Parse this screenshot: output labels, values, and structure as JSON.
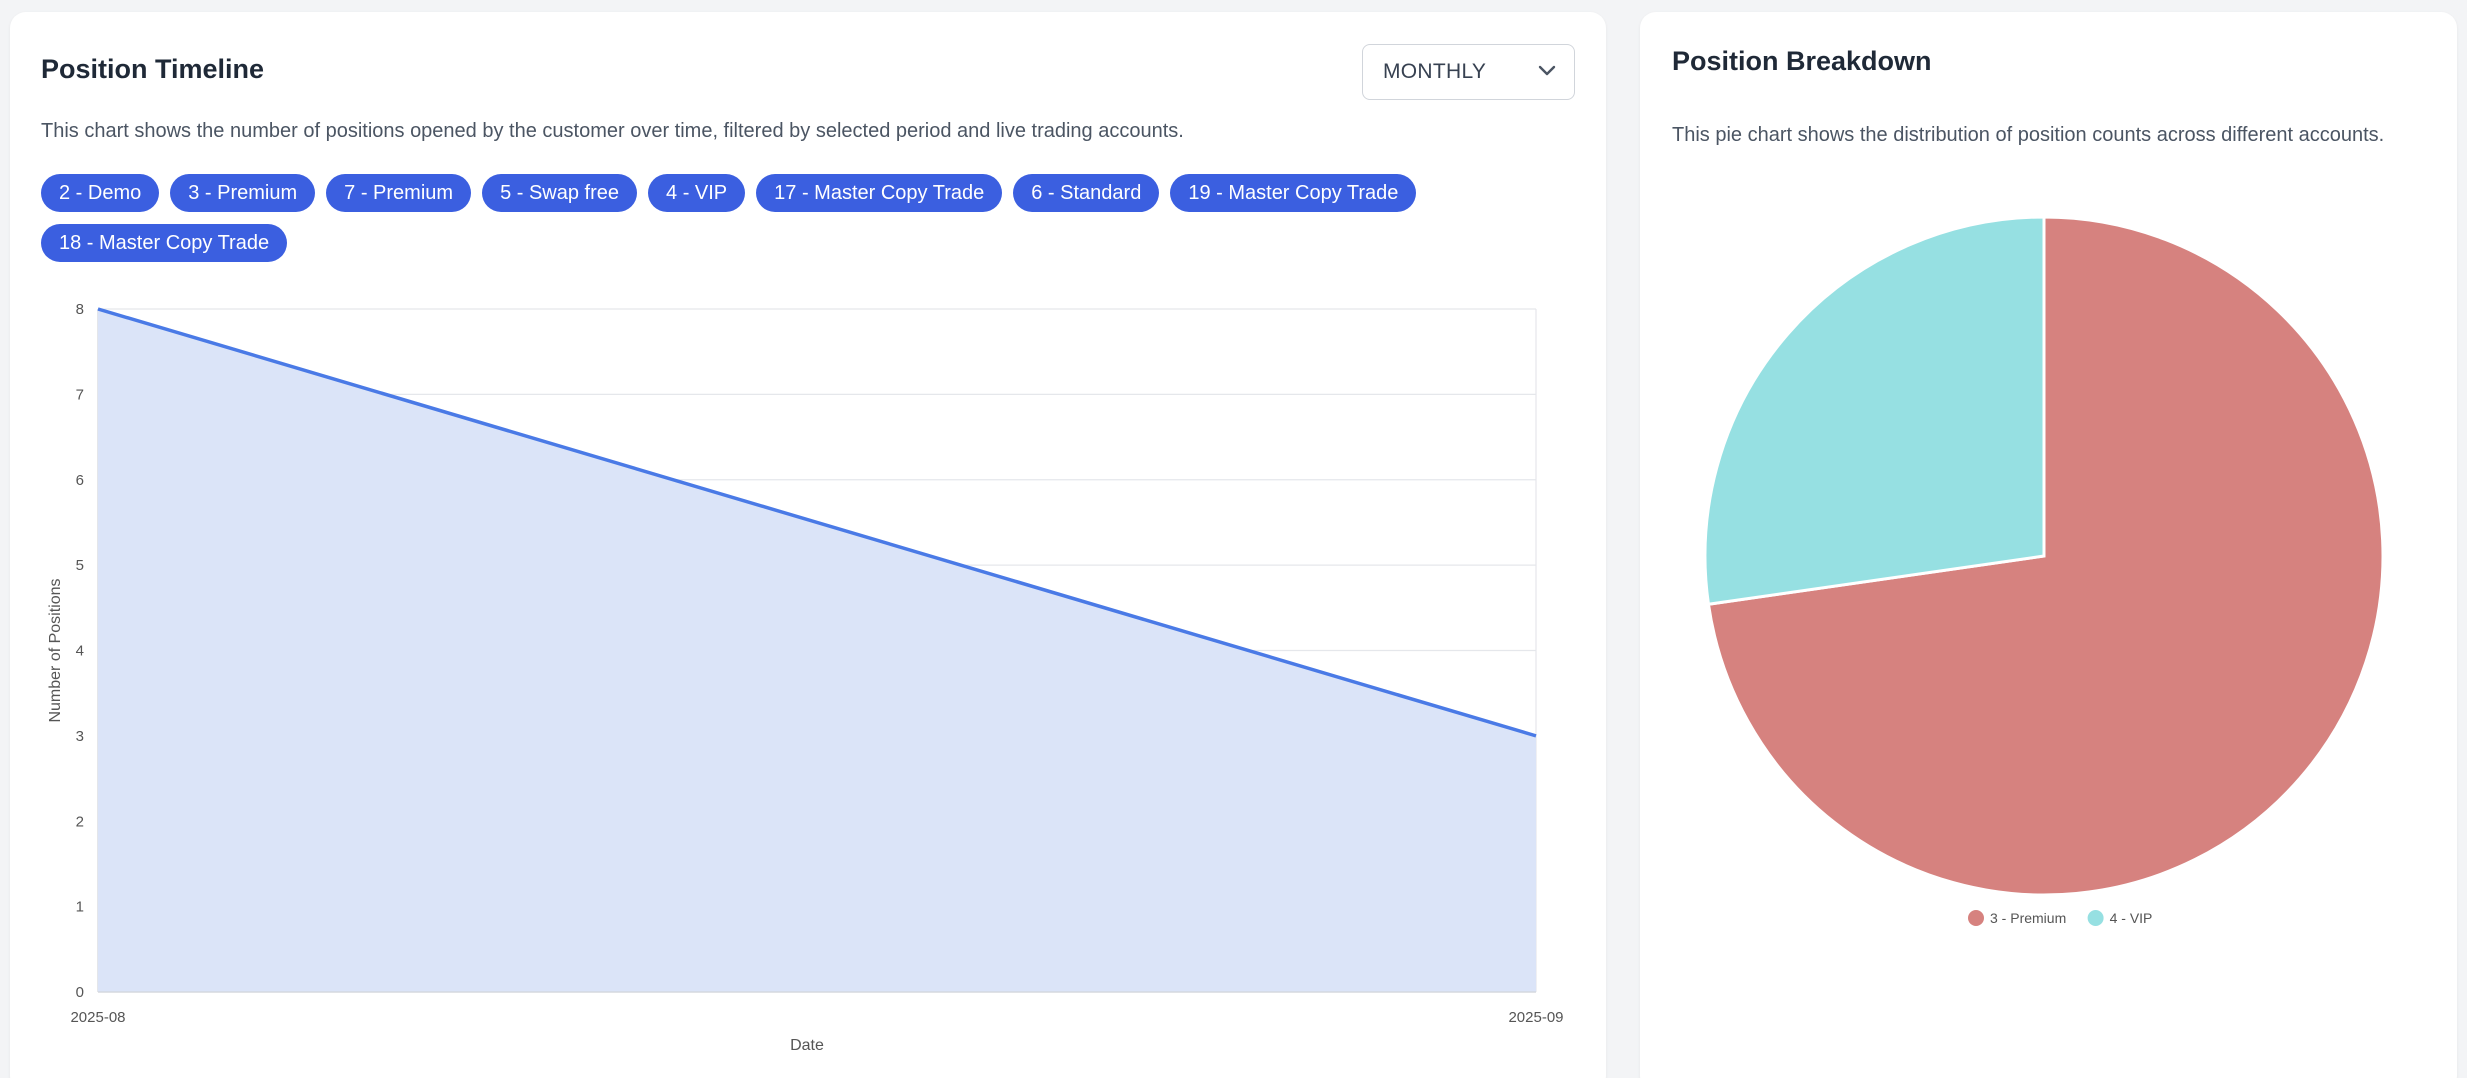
{
  "timeline": {
    "title": "Position Timeline",
    "description": "This chart shows the number of positions opened by the customer over time, filtered by selected period and live trading accounts.",
    "period_select": {
      "value": "MONTHLY"
    },
    "accounts": [
      "2 - Demo",
      "3 - Premium",
      "7 - Premium",
      "5 - Swap free",
      "4 - VIP",
      "17 - Master Copy Trade",
      "6 - Standard",
      "19 - Master Copy Trade",
      "18 - Master Copy Trade"
    ]
  },
  "breakdown": {
    "title": "Position Breakdown",
    "description": "This pie chart shows the distribution of position counts across different accounts."
  },
  "colors": {
    "badge": "#3b5fe0",
    "line": "#4a7ae6",
    "area": "#dbe4f8",
    "premium": "#d6827f",
    "vip": "#96e0e2"
  },
  "chart_data": [
    {
      "type": "area",
      "x": [
        "2025-08",
        "2025-09"
      ],
      "series": [
        {
          "values": [
            8,
            3
          ]
        }
      ],
      "xlabel": "Date",
      "ylabel": "Number of Positions",
      "ylim": [
        0,
        8
      ],
      "yticks": [
        0,
        1,
        2,
        3,
        4,
        5,
        6,
        7,
        8
      ],
      "grid": true
    },
    {
      "type": "pie",
      "labels": [
        "3 - Premium",
        "4 - VIP"
      ],
      "values": [
        8,
        3
      ],
      "legend": "bottom"
    }
  ]
}
